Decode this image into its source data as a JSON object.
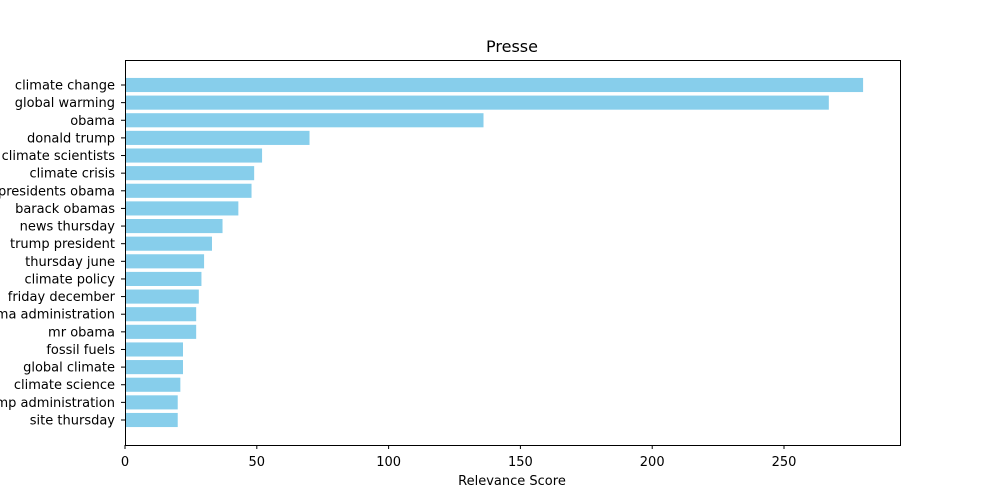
{
  "chart_data": {
    "type": "bar",
    "orientation": "horizontal",
    "title": "Presse",
    "xlabel": "Relevance Score",
    "ylabel": "",
    "xlim": [
      0,
      294
    ],
    "xticks": [
      0,
      50,
      100,
      150,
      200,
      250
    ],
    "grid": false,
    "bar_color": "#87ceeb",
    "categories": [
      "climate change",
      "global warming",
      "obama",
      "donald trump",
      "climate scientists",
      "climate crisis",
      "presidents obama",
      "barack obamas",
      "news thursday",
      "trump president",
      "thursday june",
      "climate policy",
      "friday december",
      "obama administration",
      "mr obama",
      "fossil fuels",
      "global climate",
      "climate science",
      "trump administration",
      "site thursday"
    ],
    "values": [
      280,
      267,
      136,
      70,
      52,
      49,
      48,
      43,
      37,
      33,
      30,
      29,
      28,
      27,
      27,
      22,
      22,
      21,
      20,
      20
    ]
  }
}
